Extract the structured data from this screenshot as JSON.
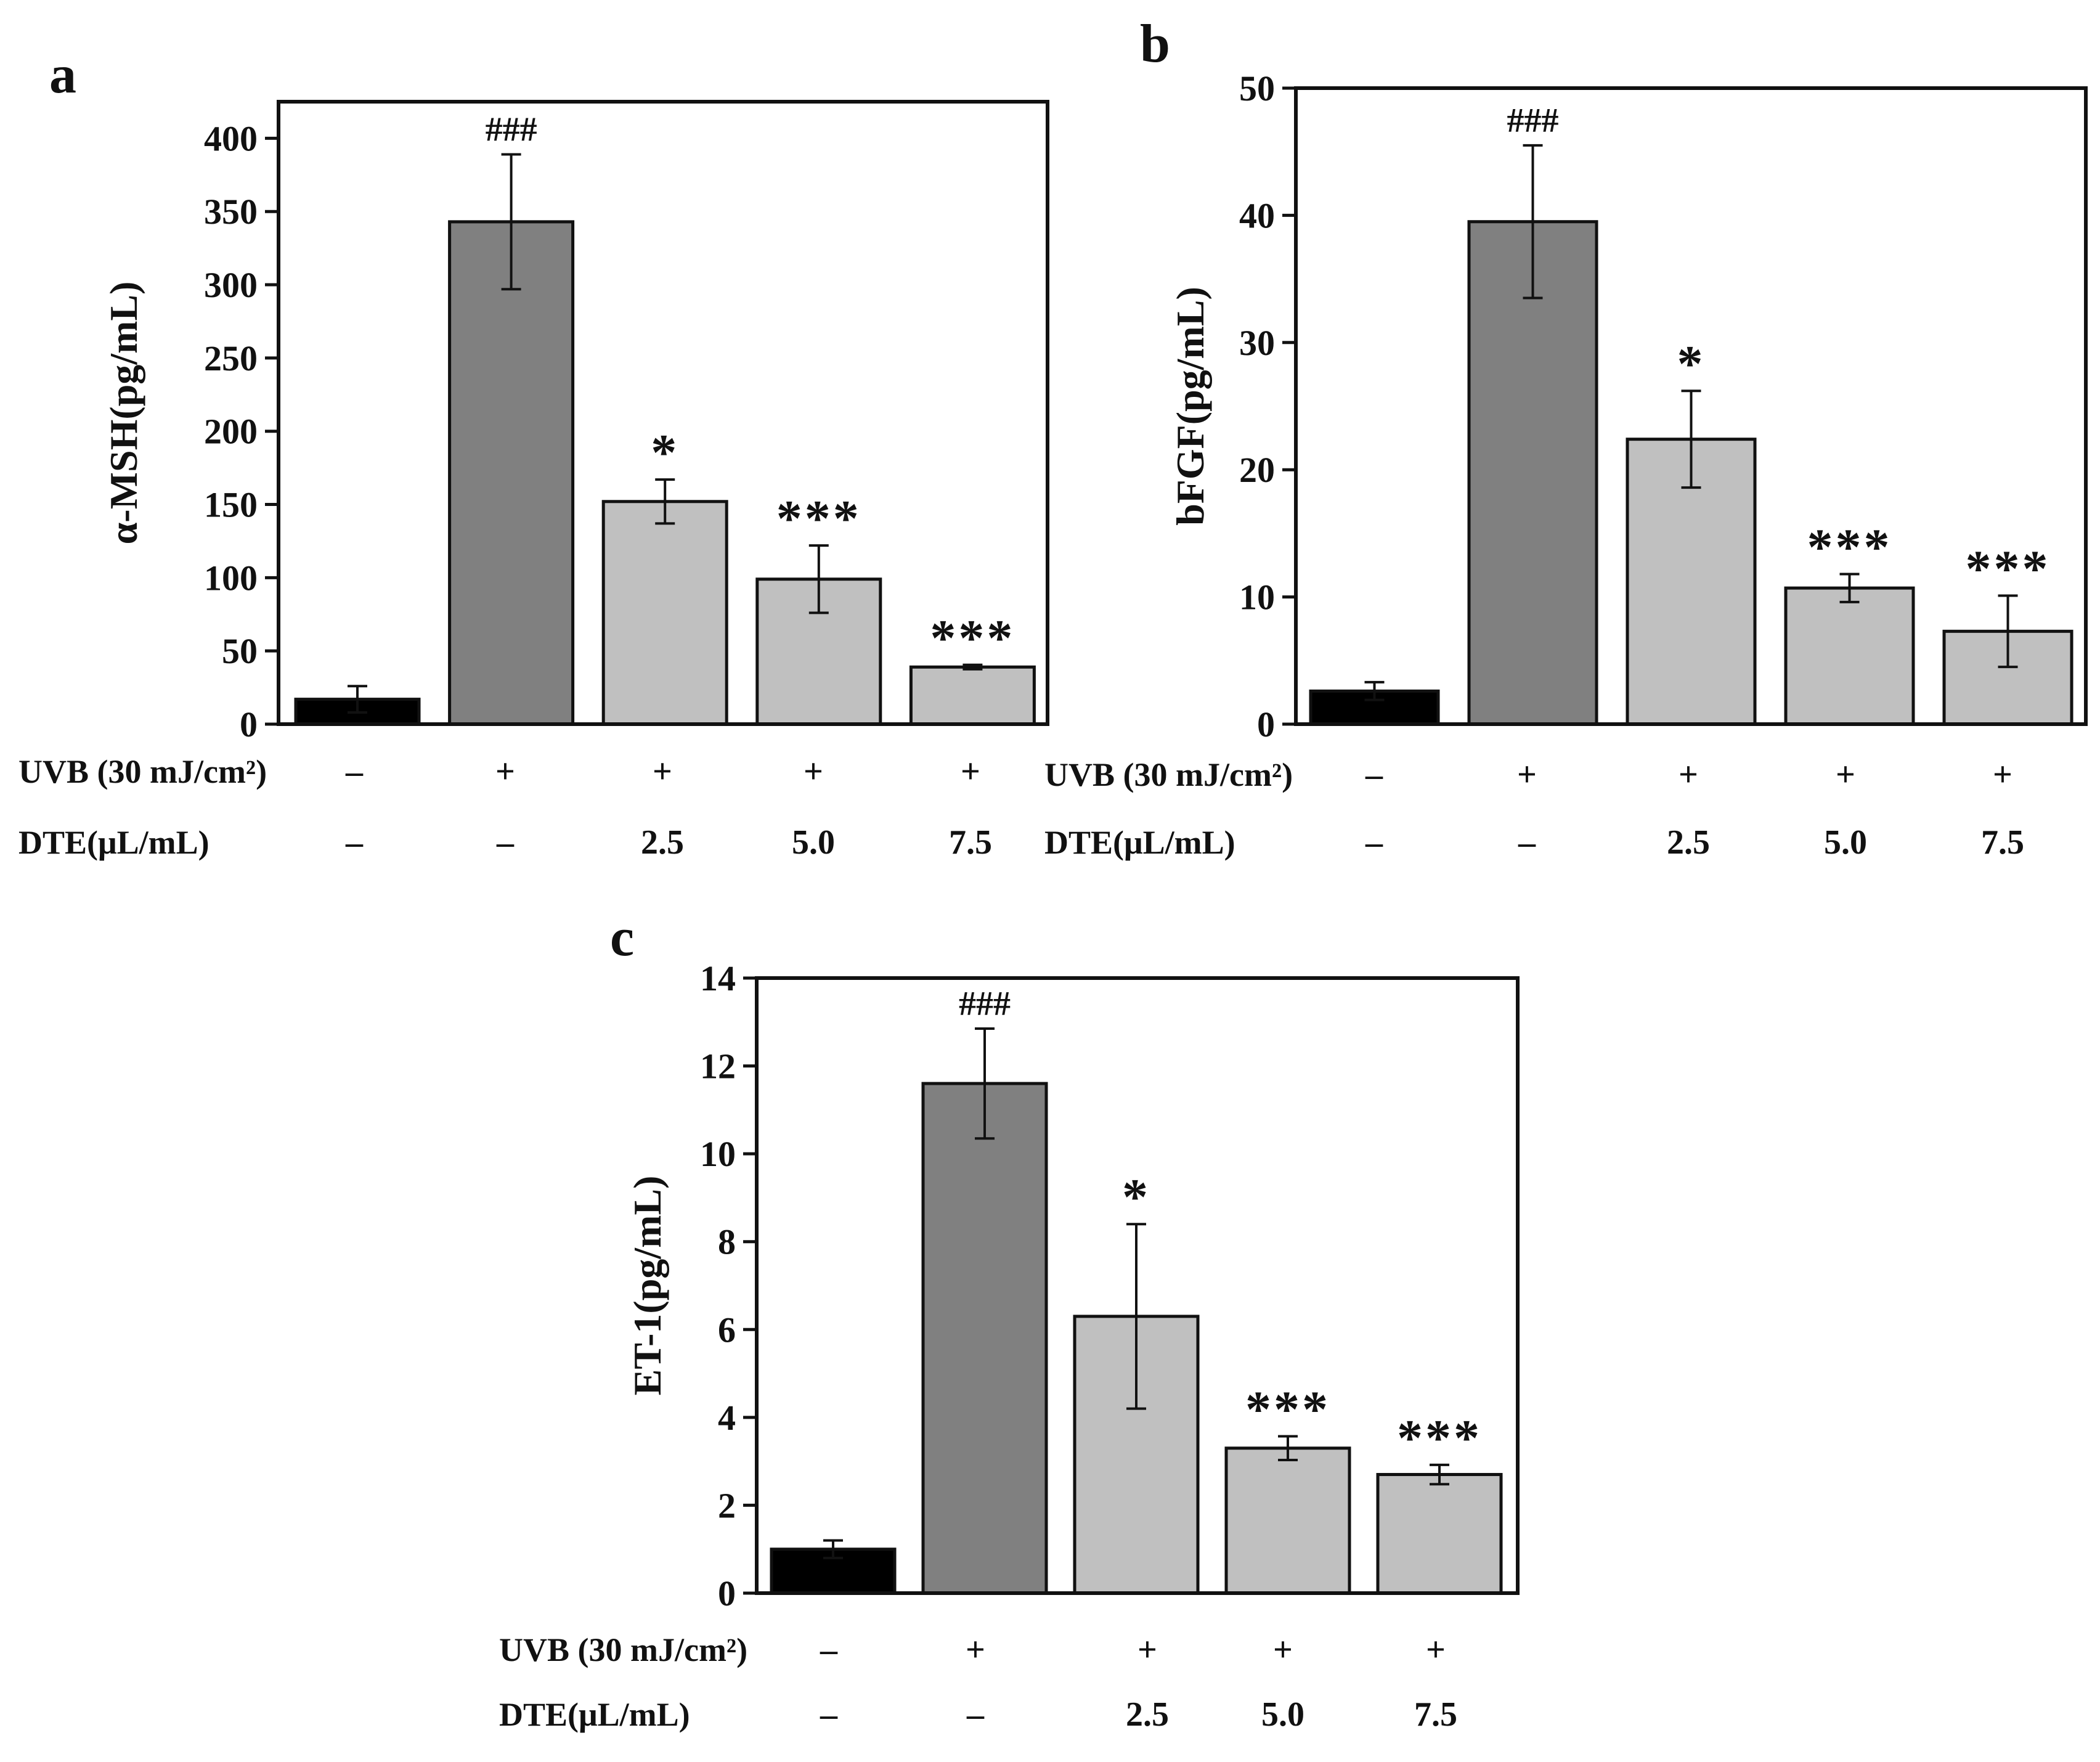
{
  "chart_data": [
    {
      "panel": "a",
      "type": "bar",
      "ylabel": "α-MSH(pg/mL)",
      "ylim": [
        0,
        425
      ],
      "yticks": [
        0,
        50,
        100,
        150,
        200,
        250,
        300,
        350,
        400
      ],
      "values": [
        17,
        343,
        152,
        99,
        39
      ],
      "errors": [
        9,
        46,
        15,
        23,
        1.5
      ],
      "colors": [
        "#000000",
        "#808080",
        "#c0c0c0",
        "#c0c0c0",
        "#c0c0c0"
      ],
      "annotations": [
        "",
        "###",
        "*",
        "***",
        "***"
      ],
      "rows": [
        {
          "label": "UVB (30 mJ/cm²)",
          "values": [
            "–",
            "+",
            "+",
            "+",
            "+"
          ]
        },
        {
          "label": "DTE(μL/mL)",
          "values": [
            "–",
            "–",
            "2.5",
            "5.0",
            "7.5"
          ]
        }
      ]
    },
    {
      "panel": "b",
      "type": "bar",
      "ylabel": "bFGF(pg/mL)",
      "ylim": [
        0,
        50
      ],
      "yticks": [
        0,
        10,
        20,
        30,
        40,
        50
      ],
      "values": [
        2.6,
        39.5,
        22.4,
        10.7,
        7.3
      ],
      "errors": [
        0.7,
        6.0,
        3.8,
        1.1,
        2.8
      ],
      "colors": [
        "#000000",
        "#808080",
        "#c0c0c0",
        "#c0c0c0",
        "#c0c0c0"
      ],
      "annotations": [
        "",
        "###",
        "*",
        "***",
        "***"
      ],
      "rows": [
        {
          "label": "UVB (30 mJ/cm²)",
          "values": [
            "–",
            "+",
            "+",
            "+",
            "+"
          ]
        },
        {
          "label": "DTE(μL/mL)",
          "values": [
            "–",
            "–",
            "2.5",
            "5.0",
            "7.5"
          ]
        }
      ]
    },
    {
      "panel": "c",
      "type": "bar",
      "ylabel": "ET-1(pg/mL)",
      "ylim": [
        0,
        14
      ],
      "yticks": [
        0,
        2,
        4,
        6,
        8,
        10,
        12,
        14
      ],
      "values": [
        1.0,
        11.6,
        6.3,
        3.3,
        2.7
      ],
      "errors": [
        0.2,
        1.25,
        2.1,
        0.27,
        0.22
      ],
      "colors": [
        "#000000",
        "#808080",
        "#c0c0c0",
        "#c0c0c0",
        "#c0c0c0"
      ],
      "annotations": [
        "",
        "###",
        "*",
        "***",
        "***"
      ],
      "rows": [
        {
          "label": "UVB (30 mJ/cm²)",
          "values": [
            "–",
            "+",
            "+",
            "+",
            "+"
          ]
        },
        {
          "label": "DTE(μL/mL)",
          "values": [
            "–",
            "–",
            "2.5",
            "5.0",
            "7.5"
          ]
        }
      ]
    }
  ]
}
